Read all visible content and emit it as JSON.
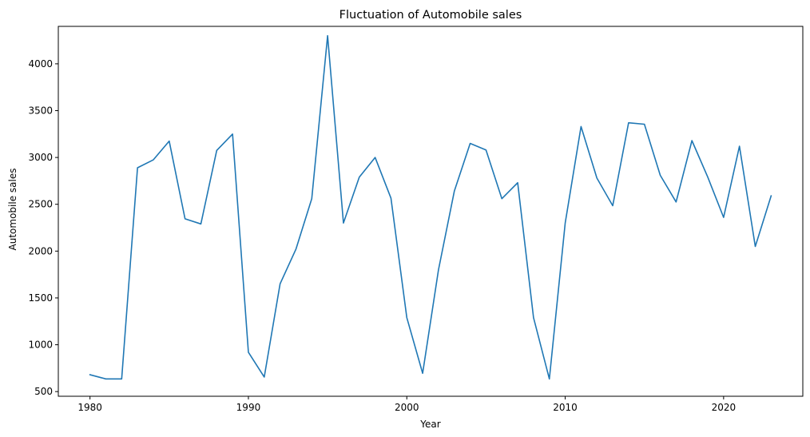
{
  "chart_data": {
    "type": "line",
    "title": "Fluctuation of Automobile sales",
    "xlabel": "Year",
    "ylabel": "Automobile sales",
    "xlim": [
      1978,
      2025
    ],
    "ylim": [
      450,
      4400
    ],
    "xticks": [
      1980,
      1990,
      2000,
      2010,
      2020
    ],
    "yticks": [
      500,
      1000,
      1500,
      2000,
      2500,
      3000,
      3500,
      4000
    ],
    "grid": false,
    "line_color": "#1f77b4",
    "series": [
      {
        "x": [
          1980,
          1981,
          1982,
          1983,
          1984,
          1985,
          1986,
          1987,
          1988,
          1989,
          1990,
          1991,
          1992,
          1993,
          1994,
          1995,
          1996,
          1997,
          1998,
          1999,
          2000,
          2001,
          2002,
          2003,
          2004,
          2005,
          2006,
          2007,
          2008,
          2009,
          2010,
          2011,
          2012,
          2013,
          2014,
          2015,
          2016,
          2017,
          2018,
          2019,
          2020,
          2021,
          2022,
          2023
        ],
        "values": [
          680,
          635,
          635,
          2890,
          2975,
          3175,
          2345,
          2290,
          3075,
          3250,
          920,
          655,
          1650,
          2020,
          2560,
          4300,
          2300,
          2790,
          3000,
          2565,
          1290,
          695,
          1800,
          2640,
          3150,
          3080,
          2560,
          2730,
          1290,
          635,
          2300,
          3330,
          2780,
          2485,
          3370,
          3355,
          2810,
          2525,
          3180,
          2790,
          2360,
          3120,
          2050,
          2590
        ]
      }
    ]
  }
}
